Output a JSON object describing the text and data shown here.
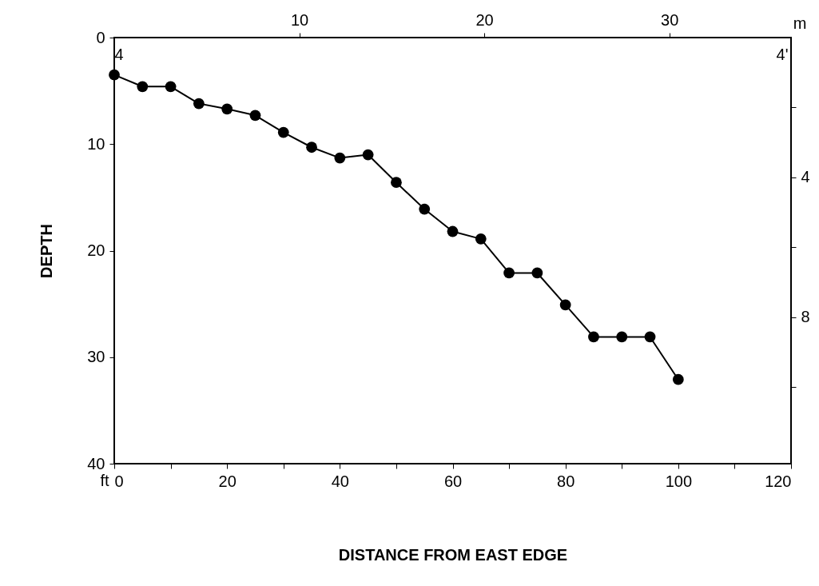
{
  "chart_data": {
    "type": "line",
    "xlabel": "DISTANCE FROM EAST EDGE",
    "ylabel": "DEPTH",
    "x": [
      0,
      5,
      10,
      15,
      20,
      25,
      30,
      35,
      40,
      45,
      50,
      55,
      60,
      65,
      70,
      75,
      80,
      85,
      90,
      95,
      100
    ],
    "series": [
      {
        "color": "#000000",
        "values": [
          3.5,
          4.6,
          4.6,
          6.2,
          6.7,
          7.3,
          8.9,
          10.3,
          11.3,
          11.0,
          13.6,
          16.1,
          18.2,
          18.9,
          22.1,
          22.1,
          25.1,
          28.1,
          28.1,
          28.1,
          32.1
        ]
      }
    ],
    "xlim": [
      0,
      120
    ],
    "xticks": [
      0,
      {
        "value": 10,
        "label": null
      },
      20,
      {
        "value": 30,
        "label": null
      },
      40,
      {
        "value": 50,
        "label": null
      },
      60,
      {
        "value": 70,
        "label": null
      },
      80,
      {
        "value": 90,
        "label": null
      },
      100,
      {
        "value": 110,
        "label": null
      },
      120
    ],
    "ylim": [
      40,
      0
    ],
    "yticks": [
      0,
      10,
      20,
      30,
      40
    ],
    "x2lim": [
      0,
      36.58
    ],
    "x2ticks": [
      10,
      20,
      30
    ],
    "y2lim": [
      12.19,
      0
    ],
    "y2ticks": [
      {
        "value": 2,
        "label": null
      },
      4,
      {
        "value": 6,
        "label": null
      },
      8,
      {
        "value": 10,
        "label": null
      }
    ],
    "annotations": [
      "4",
      "4'",
      "ft",
      "m"
    ],
    "grid": false,
    "marker": "circle",
    "line_style": "solid"
  }
}
